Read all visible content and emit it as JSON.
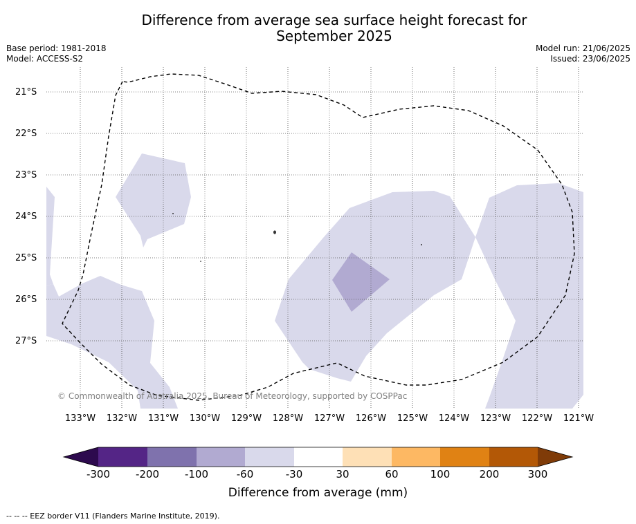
{
  "title_line1": "Difference from average sea surface height forecast for",
  "title_line2": "September 2025",
  "base_period": "Base period: 1981-2018",
  "model": "Model: ACCESS-S2",
  "model_run": "Model run: 21/06/2025",
  "issued": "Issued: 23/06/2025",
  "latitude_labels": [
    "21°S",
    "22°S",
    "23°S",
    "24°S",
    "25°S",
    "26°S",
    "27°S"
  ],
  "longitude_labels": [
    "133°W",
    "132°W",
    "131°W",
    "130°W",
    "129°W",
    "128°W",
    "127°W",
    "126°W",
    "125°W",
    "124°W",
    "123°W",
    "122°W",
    "121°W"
  ],
  "copyright": "© Commonwealth of Australia 2025, Bureau of Meteorology, supported by COSPPac",
  "colorbar": {
    "title": "Difference from average (mm)",
    "ticks": [
      "-300",
      "-200",
      "-100",
      "-60",
      "-30",
      "30",
      "60",
      "100",
      "200",
      "300"
    ],
    "bins": [
      {
        "range": "< -300",
        "color": "#2d0a4e"
      },
      {
        "range": "-300 to -200",
        "color": "#542586"
      },
      {
        "range": "-200 to -100",
        "color": "#7f72ad"
      },
      {
        "range": "-100 to -60",
        "color": "#b1aad1"
      },
      {
        "range": "-60 to -30",
        "color": "#d9d9eb"
      },
      {
        "range": "-30 to 30",
        "color": "#ffffff"
      },
      {
        "range": "30 to 60",
        "color": "#fee0b6"
      },
      {
        "range": "60 to 100",
        "color": "#fdb863"
      },
      {
        "range": "100 to 200",
        "color": "#e08214"
      },
      {
        "range": "200 to 300",
        "color": "#b35806"
      },
      {
        "range": "> 300",
        "color": "#7f3b08"
      }
    ]
  },
  "footer": "--  --  -- EEZ border V11 (Flanders Marine Institute, 2019)."
}
